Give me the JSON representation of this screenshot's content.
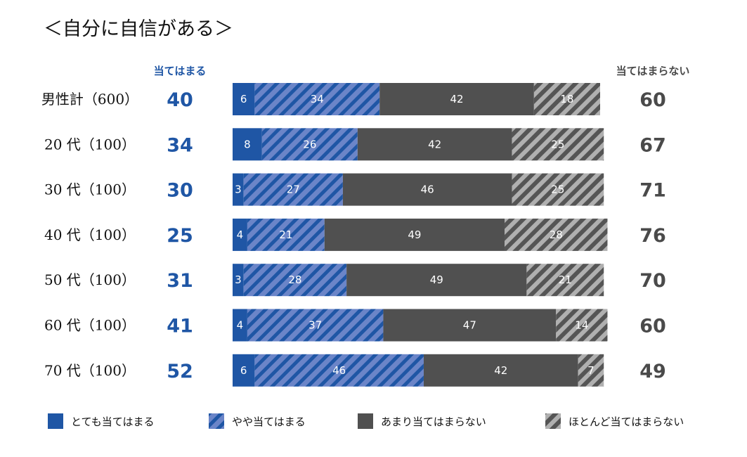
{
  "title": "＜自分に自信がある＞",
  "colors": {
    "agree_strong": "#1f56a5",
    "agree_some": "#6b85c8",
    "disagree_some": "#505050",
    "disagree_strong": "#8a8a8a",
    "blue_text": "#1f56a5",
    "gray_text": "#4a4a4a"
  },
  "headers": {
    "agree": "当てはまる",
    "disagree": "当てはまらない"
  },
  "chart_data": {
    "type": "bar",
    "orientation": "horizontal",
    "stacked": true,
    "title": "＜自分に自信がある＞",
    "unit": "%",
    "categories": [
      "男性計（600）",
      "20 代（100）",
      "30 代（100）",
      "40 代（100）",
      "50 代（100）",
      "60 代（100）",
      "70 代（100）"
    ],
    "series": [
      {
        "name": "とても当てはまる",
        "values": [
          6,
          8,
          3,
          4,
          3,
          4,
          6
        ]
      },
      {
        "name": "やや当てはまる",
        "values": [
          34,
          26,
          27,
          21,
          28,
          37,
          46
        ]
      },
      {
        "name": "あまり当てはまらない",
        "values": [
          42,
          42,
          46,
          49,
          49,
          47,
          42
        ]
      },
      {
        "name": "ほとんど当てはまらない",
        "values": [
          18,
          25,
          25,
          28,
          21,
          14,
          7
        ]
      }
    ],
    "totals_agree": [
      40,
      34,
      30,
      25,
      31,
      41,
      52
    ],
    "totals_disagree": [
      60,
      67,
      71,
      76,
      70,
      60,
      49
    ],
    "legend": [
      "とても当てはまる",
      "やや当てはまる",
      "あまり当てはまらない",
      "ほとんど当てはまらない"
    ],
    "legend_position": "bottom"
  }
}
